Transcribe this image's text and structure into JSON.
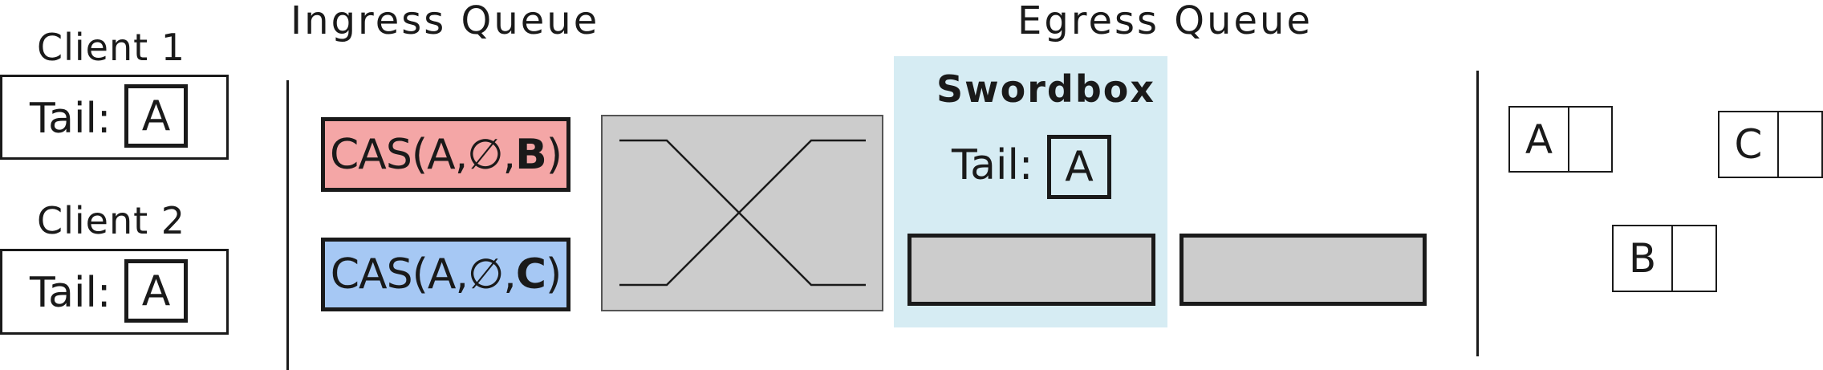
{
  "headings": {
    "ingress": "Ingress Queue",
    "egress": "Egress Queue"
  },
  "clients": [
    {
      "name": "Client 1",
      "tail_label": "Tail:",
      "tail_value": "A"
    },
    {
      "name": "Client 2",
      "tail_label": "Tail:",
      "tail_value": "A"
    }
  ],
  "ingress_requests": [
    {
      "prefix": "CAS(A,∅,",
      "arg": "B",
      "suffix": ")",
      "color": "#f4a6a6"
    },
    {
      "prefix": "CAS(A,∅,",
      "arg": "C",
      "suffix": ")",
      "color": "#a6c8f4"
    }
  ],
  "swordbox": {
    "title": "Swordbox",
    "tail_label": "Tail:",
    "tail_value": "A",
    "background": "#d6ecf3"
  },
  "list_nodes": [
    {
      "value": "A"
    },
    {
      "value": "C"
    },
    {
      "value": "B"
    }
  ],
  "colors": {
    "queue_slot": "#cccccc",
    "switch_box": "#cccccc",
    "line": "#1a1a1a"
  }
}
